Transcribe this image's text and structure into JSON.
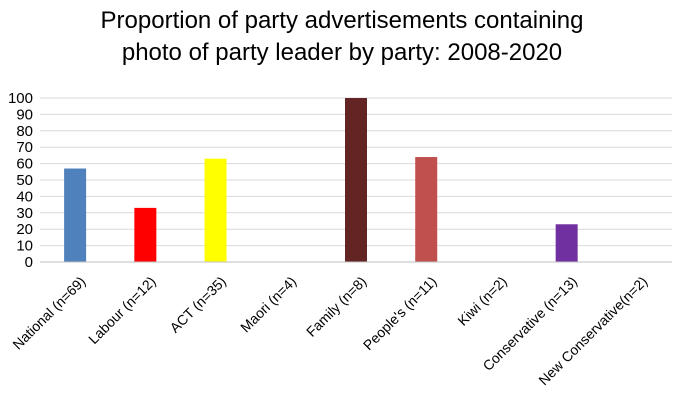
{
  "chart_data": {
    "type": "bar",
    "title_lines": [
      "Proportion of party advertisements containing",
      "photo of party leader by party: 2008-2020"
    ],
    "categories": [
      "National (n=69)",
      "Labour (n=12)",
      "ACT (n=35)",
      "Maori (n=4)",
      "Family (n=8)",
      "People's (n=11)",
      "Kiwi (n=2)",
      "Conservative (n=13)",
      "New Conservative(n=2)"
    ],
    "values": [
      57,
      33,
      63,
      0,
      100,
      64,
      0,
      23,
      0
    ],
    "colors": [
      "#4f81bd",
      "#ff0000",
      "#ffff00",
      "#ffffff",
      "#632523",
      "#c0504d",
      "#ffffff",
      "#7030a0",
      "#ffffff"
    ],
    "ylim": [
      0,
      100
    ],
    "yticks": [
      0,
      10,
      20,
      30,
      40,
      50,
      60,
      70,
      80,
      90,
      100
    ],
    "grid": true,
    "legend": "none",
    "xlabel": "",
    "ylabel": ""
  }
}
